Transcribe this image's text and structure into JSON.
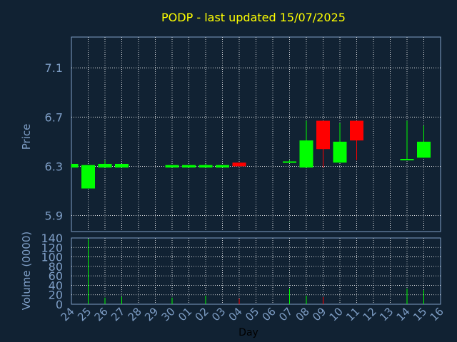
{
  "title": "PODP - last updated 15/07/2025",
  "colors": {
    "background": "#112233",
    "plot_bg": "#112233",
    "grid": "#ffffff",
    "axis_text": "#7e9ec6",
    "title": "#ffff00",
    "up": "#00ff00",
    "down": "#ff0000",
    "frame": "#7e9ec6"
  },
  "chart_data": [
    {
      "type": "candlestick",
      "ylabel": "Price",
      "ylim": [
        5.77,
        7.35
      ],
      "yticks": [
        "5.9",
        "6.3",
        "6.7",
        "7.1"
      ],
      "categories": [
        "24",
        "25",
        "26",
        "27",
        "28",
        "29",
        "30",
        "01",
        "02",
        "03",
        "04",
        "05",
        "06",
        "07",
        "08",
        "09",
        "10",
        "11",
        "12",
        "13",
        "14",
        "15",
        "16"
      ],
      "candles": [
        {
          "day": "24",
          "open": 6.29,
          "close": 6.32,
          "high": 6.32,
          "low": 6.29,
          "dir": "up"
        },
        {
          "day": "25",
          "open": 6.12,
          "close": 6.31,
          "high": 6.31,
          "low": 6.12,
          "dir": "up"
        },
        {
          "day": "26",
          "open": 6.29,
          "close": 6.32,
          "high": 6.35,
          "low": 6.29,
          "dir": "up"
        },
        {
          "day": "27",
          "open": 6.29,
          "close": 6.32,
          "high": 6.32,
          "low": 6.29,
          "dir": "up"
        },
        {
          "day": "30",
          "open": 6.29,
          "close": 6.31,
          "high": 6.31,
          "low": 6.29,
          "dir": "up"
        },
        {
          "day": "01",
          "open": 6.29,
          "close": 6.31,
          "high": 6.31,
          "low": 6.29,
          "dir": "up"
        },
        {
          "day": "02",
          "open": 6.29,
          "close": 6.31,
          "high": 6.32,
          "low": 6.29,
          "dir": "up"
        },
        {
          "day": "03",
          "open": 6.29,
          "close": 6.31,
          "high": 6.31,
          "low": 6.29,
          "dir": "up"
        },
        {
          "day": "04",
          "open": 6.33,
          "close": 6.3,
          "high": 6.33,
          "low": 6.3,
          "dir": "down"
        },
        {
          "day": "07",
          "open": 6.33,
          "close": 6.34,
          "high": 6.35,
          "low": 6.33,
          "dir": "up"
        },
        {
          "day": "08",
          "open": 6.29,
          "close": 6.51,
          "high": 6.67,
          "low": 6.29,
          "dir": "up"
        },
        {
          "day": "09",
          "open": 6.67,
          "close": 6.44,
          "high": 6.67,
          "low": 6.29,
          "dir": "down"
        },
        {
          "day": "10",
          "open": 6.33,
          "close": 6.5,
          "high": 6.65,
          "low": 6.33,
          "dir": "up"
        },
        {
          "day": "11",
          "open": 6.67,
          "close": 6.51,
          "high": 6.67,
          "low": 6.35,
          "dir": "down"
        },
        {
          "day": "14",
          "open": 6.35,
          "close": 6.36,
          "high": 6.67,
          "low": 6.35,
          "dir": "up"
        },
        {
          "day": "15",
          "open": 6.37,
          "close": 6.5,
          "high": 6.63,
          "low": 6.37,
          "dir": "up"
        }
      ]
    },
    {
      "type": "bar",
      "ylabel": "Volume (0000)",
      "xlabel": "Day",
      "ylim": [
        0,
        140
      ],
      "yticks": [
        "0",
        "20",
        "40",
        "60",
        "80",
        "100",
        "120",
        "140"
      ],
      "categories": [
        "24",
        "25",
        "26",
        "27",
        "28",
        "29",
        "30",
        "01",
        "02",
        "03",
        "04",
        "05",
        "06",
        "07",
        "08",
        "09",
        "10",
        "11",
        "12",
        "13",
        "14",
        "15",
        "16"
      ],
      "bars": [
        {
          "day": "25",
          "value": 138,
          "dir": "up"
        },
        {
          "day": "26",
          "value": 14,
          "dir": "up"
        },
        {
          "day": "27",
          "value": 16,
          "dir": "up"
        },
        {
          "day": "30",
          "value": 14,
          "dir": "up"
        },
        {
          "day": "02",
          "value": 18,
          "dir": "up"
        },
        {
          "day": "04",
          "value": 12,
          "dir": "down"
        },
        {
          "day": "07",
          "value": 33,
          "dir": "up"
        },
        {
          "day": "08",
          "value": 18,
          "dir": "up"
        },
        {
          "day": "09",
          "value": 15,
          "dir": "down"
        },
        {
          "day": "14",
          "value": 33,
          "dir": "up"
        },
        {
          "day": "15",
          "value": 30,
          "dir": "up"
        }
      ]
    }
  ]
}
